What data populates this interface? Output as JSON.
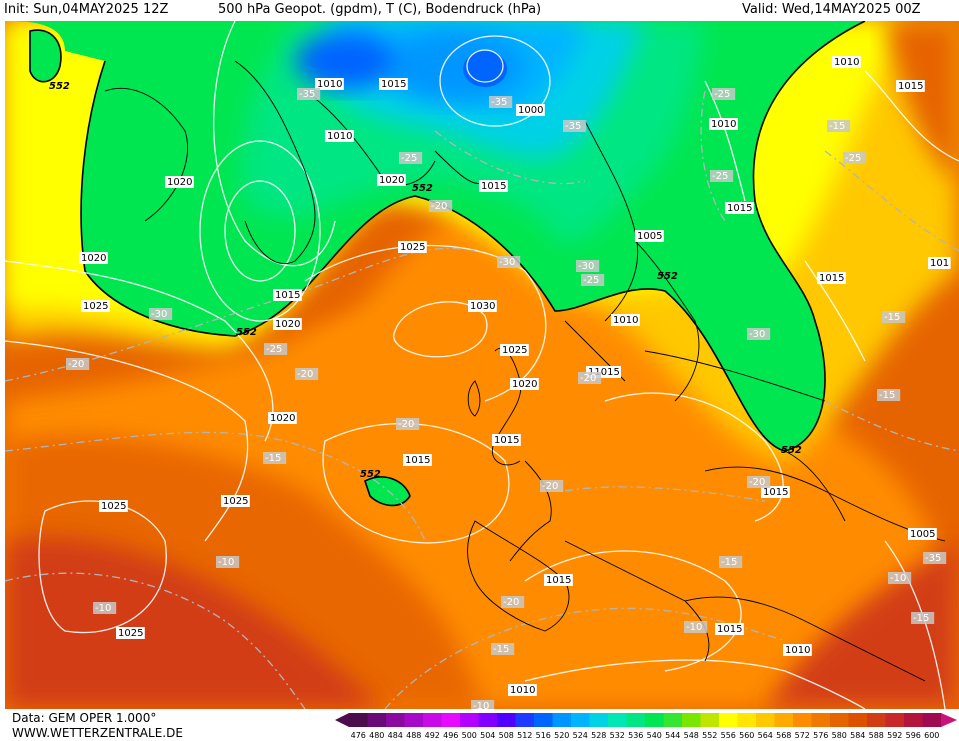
{
  "header": {
    "init": "Init: Sun,04MAY2025 12Z",
    "title": "500 hPa Geopot. (gpdm), T (C), Bodendruck (hPa)",
    "valid": "Valid: Wed,14MAY2025 00Z"
  },
  "footer": {
    "data_source": "Data: GEM OPER 1.000°",
    "website": "WWW.WETTERZENTRALE.DE"
  },
  "legend": {
    "ticks": [
      "476",
      "480",
      "484",
      "488",
      "492",
      "496",
      "500",
      "504",
      "508",
      "512",
      "516",
      "520",
      "524",
      "528",
      "532",
      "536",
      "540",
      "544",
      "548",
      "552",
      "556",
      "560",
      "564",
      "568",
      "572",
      "576",
      "580",
      "584",
      "588",
      "592",
      "596",
      "600"
    ],
    "colors": [
      "#4b0d4b",
      "#6a0a78",
      "#8a0aa0",
      "#a60ac8",
      "#c80ae6",
      "#e60aff",
      "#b400ff",
      "#8200ff",
      "#5000ff",
      "#1e3cff",
      "#0064ff",
      "#0096ff",
      "#00b4ff",
      "#00d2e6",
      "#00e6b4",
      "#00e682",
      "#00e650",
      "#32e632",
      "#78e600",
      "#bee600",
      "#ffff00",
      "#ffe600",
      "#ffc800",
      "#ffaa00",
      "#ff8c00",
      "#f07800",
      "#e66400",
      "#dc5000",
      "#d23c14",
      "#c82828",
      "#b4143c",
      "#a00a50"
    ]
  },
  "map": {
    "geopotential_labels": [
      {
        "text": "552"
      },
      {
        "text": "552"
      },
      {
        "text": "552"
      },
      {
        "text": "552"
      },
      {
        "text": "552"
      },
      {
        "text": "552"
      }
    ],
    "pressure_labels": [
      {
        "text": "1010"
      },
      {
        "text": "1015"
      },
      {
        "text": "1010"
      },
      {
        "text": "1000"
      },
      {
        "text": "1020"
      },
      {
        "text": "1020"
      },
      {
        "text": "1015"
      },
      {
        "text": "1020"
      },
      {
        "text": "1025"
      },
      {
        "text": "1015"
      },
      {
        "text": "1020"
      },
      {
        "text": "1030"
      },
      {
        "text": "1025"
      },
      {
        "text": "1020"
      },
      {
        "text": "1010"
      },
      {
        "text": "11015"
      },
      {
        "text": "1025"
      },
      {
        "text": "1020"
      },
      {
        "text": "1015"
      },
      {
        "text": "1015"
      },
      {
        "text": "1025"
      },
      {
        "text": "1025"
      },
      {
        "text": "1025"
      },
      {
        "text": "1015"
      },
      {
        "text": "1015"
      },
      {
        "text": "1010"
      },
      {
        "text": "1010"
      },
      {
        "text": "1005"
      },
      {
        "text": "1010"
      },
      {
        "text": "1015"
      },
      {
        "text": "1010"
      },
      {
        "text": "1015"
      },
      {
        "text": "1005"
      },
      {
        "text": "1015"
      },
      {
        "text": "101"
      },
      {
        "text": "1015"
      }
    ],
    "temperature_labels": [
      {
        "text": "-35"
      },
      {
        "text": "-35"
      },
      {
        "text": "-35"
      },
      {
        "text": "-25"
      },
      {
        "text": "-20"
      },
      {
        "text": "-30"
      },
      {
        "text": "-25"
      },
      {
        "text": "-30"
      },
      {
        "text": "-25"
      },
      {
        "text": "-20"
      },
      {
        "text": "-20"
      },
      {
        "text": "-20"
      },
      {
        "text": "-15"
      },
      {
        "text": "-20"
      },
      {
        "text": "-20"
      },
      {
        "text": "-10"
      },
      {
        "text": "-10"
      },
      {
        "text": "-20"
      },
      {
        "text": "-15"
      },
      {
        "text": "-10"
      },
      {
        "text": "-10"
      },
      {
        "text": "-15"
      },
      {
        "text": "-20"
      },
      {
        "text": "-25"
      },
      {
        "text": "-15"
      },
      {
        "text": "-25"
      },
      {
        "text": "-15"
      },
      {
        "text": "-30"
      },
      {
        "text": "-15"
      },
      {
        "text": "-10"
      },
      {
        "text": "-15"
      },
      {
        "text": "-30"
      },
      {
        "text": "-35"
      },
      {
        "text": "-25"
      }
    ]
  }
}
